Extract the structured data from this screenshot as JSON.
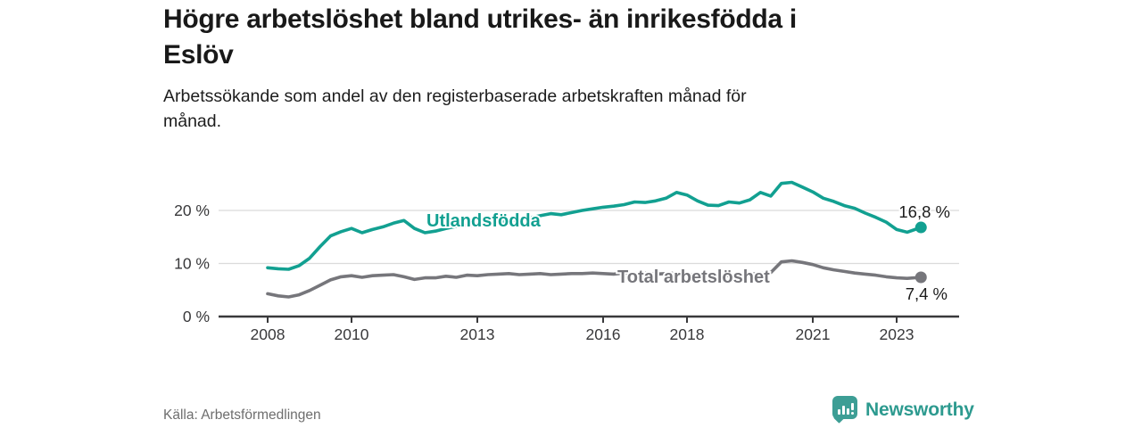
{
  "header": {
    "title_lines": [
      "Högre arbetslöshet bland utrikes- än inrikesfödda i",
      "Eslöv"
    ],
    "subtitle_lines": [
      "Arbetssökande som andel av den registerbaserade arbetskraften månad för",
      "månad."
    ]
  },
  "footer": {
    "source": "Källa: Arbetsförmedlingen",
    "brand": "Newsworthy"
  },
  "colors": {
    "foreign_series": "#12A091",
    "total_series": "#76767B",
    "brand": "#2D9A8F",
    "axis": "#39393B",
    "gridline": "#DBDBDB",
    "value_label": "#1B1B1B"
  },
  "chart_data": {
    "type": "line",
    "title": "Högre arbetslöshet bland utrikes- än inrikesfödda i Eslöv",
    "subtitle": "Arbetssökande som andel av den registerbaserade arbetskraften månad för månad.",
    "xlabel": "",
    "ylabel": "",
    "grid": "horizontal",
    "ylim": [
      0,
      27
    ],
    "ytick_values": [
      0,
      10,
      20
    ],
    "ytick_labels": [
      "0 %",
      "10 %",
      "20 %"
    ],
    "xtick_years": [
      2008,
      2010,
      2013,
      2016,
      2018,
      2021,
      2023
    ],
    "x": [
      2008.0,
      2008.25,
      2008.5,
      2008.75,
      2009.0,
      2009.25,
      2009.5,
      2009.75,
      2010.0,
      2010.25,
      2010.5,
      2010.75,
      2011.0,
      2011.25,
      2011.5,
      2011.75,
      2012.0,
      2012.25,
      2012.5,
      2012.75,
      2013.0,
      2013.25,
      2013.5,
      2013.75,
      2014.0,
      2014.25,
      2014.5,
      2014.75,
      2015.0,
      2015.25,
      2015.5,
      2015.75,
      2016.0,
      2016.25,
      2016.5,
      2016.75,
      2017.0,
      2017.25,
      2017.5,
      2017.75,
      2018.0,
      2018.25,
      2018.5,
      2018.75,
      2019.0,
      2019.25,
      2019.5,
      2019.75,
      2020.0,
      2020.25,
      2020.5,
      2020.75,
      2021.0,
      2021.25,
      2021.5,
      2021.75,
      2022.0,
      2022.25,
      2022.5,
      2022.75,
      2023.0,
      2023.25,
      2023.58
    ],
    "series": [
      {
        "name": "Utlandsfödda",
        "color": "#12A091",
        "end_label": "16,8 %",
        "values": [
          9.2,
          9.0,
          8.9,
          9.6,
          11.0,
          13.2,
          15.2,
          16.0,
          16.6,
          15.8,
          16.4,
          16.9,
          17.6,
          18.1,
          16.6,
          15.8,
          16.1,
          16.6,
          17.0,
          17.2,
          17.1,
          17.4,
          17.7,
          18.0,
          18.3,
          18.6,
          19.0,
          19.4,
          19.2,
          19.6,
          20.0,
          20.3,
          20.6,
          20.8,
          21.1,
          21.6,
          21.5,
          21.8,
          22.3,
          23.4,
          22.9,
          21.8,
          21.0,
          20.9,
          21.6,
          21.4,
          22.0,
          23.4,
          22.7,
          25.1,
          25.3,
          24.4,
          23.5,
          22.3,
          21.7,
          20.9,
          20.4,
          19.5,
          18.7,
          17.8,
          16.4,
          15.9,
          16.8
        ]
      },
      {
        "name": "Total arbetslöshet",
        "color": "#76767B",
        "end_label": "7,4 %",
        "values": [
          4.3,
          3.9,
          3.7,
          4.1,
          4.9,
          5.9,
          6.9,
          7.5,
          7.7,
          7.4,
          7.7,
          7.8,
          7.9,
          7.5,
          7.0,
          7.3,
          7.3,
          7.6,
          7.4,
          7.8,
          7.7,
          7.9,
          8.0,
          8.1,
          7.9,
          8.0,
          8.1,
          7.9,
          8.0,
          8.1,
          8.1,
          8.2,
          8.1,
          8.0,
          8.2,
          8.1,
          8.2,
          8.0,
          8.1,
          8.2,
          8.0,
          7.8,
          7.7,
          7.8,
          7.7,
          7.9,
          8.0,
          8.1,
          8.3,
          10.3,
          10.5,
          10.2,
          9.8,
          9.2,
          8.8,
          8.5,
          8.2,
          8.0,
          7.8,
          7.5,
          7.3,
          7.2,
          7.4
        ]
      }
    ]
  }
}
